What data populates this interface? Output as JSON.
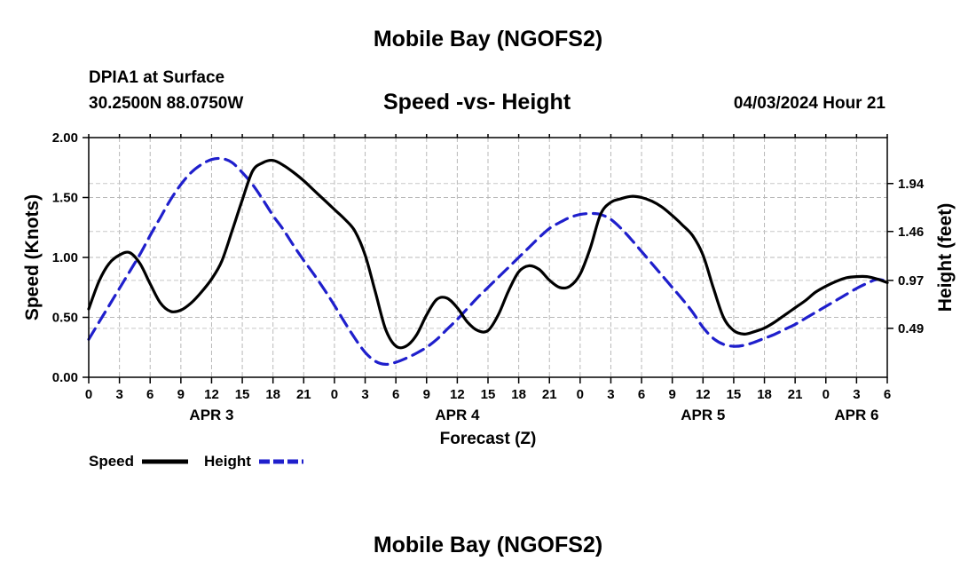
{
  "header": {
    "title": "Mobile Bay (NGOFS2)",
    "station": "DPIA1 at Surface",
    "coords": "30.2500N  88.0750W",
    "subtitle": "Speed -vs- Height",
    "datetime": "04/03/2024 Hour 21"
  },
  "footer": {
    "title": "Mobile Bay (NGOFS2)"
  },
  "chart_data": {
    "type": "line",
    "xlabel": "Forecast (Z)",
    "ylabel": "Speed (Knots)",
    "y2label": "Height (feet)",
    "xlim": [
      0,
      78
    ],
    "ylim": [
      0,
      2.0
    ],
    "y2lim": [
      0.0,
      2.4
    ],
    "x_ticks": [
      0,
      3,
      6,
      9,
      12,
      15,
      18,
      21,
      24,
      27,
      30,
      33,
      36,
      39,
      42,
      45,
      48,
      51,
      54,
      57,
      60,
      63,
      66,
      69,
      72,
      75,
      78
    ],
    "x_tick_labels": [
      "0",
      "3",
      "6",
      "9",
      "12",
      "15",
      "18",
      "21",
      "0",
      "3",
      "6",
      "9",
      "12",
      "15",
      "18",
      "21",
      "0",
      "3",
      "6",
      "9",
      "12",
      "15",
      "18",
      "21",
      "0",
      "3",
      "6"
    ],
    "y_ticks": [
      0.0,
      0.5,
      1.0,
      1.5,
      2.0
    ],
    "y_tick_labels": [
      "0.00",
      "0.50",
      "1.00",
      "1.50",
      "2.00"
    ],
    "y2_ticks": [
      0.49,
      0.97,
      1.46,
      1.94
    ],
    "y2_tick_labels": [
      "0.49",
      "0.97",
      "1.46",
      "1.94"
    ],
    "date_labels": [
      {
        "x": 12,
        "label": "APR 3"
      },
      {
        "x": 36,
        "label": "APR 4"
      },
      {
        "x": 60,
        "label": "APR 5"
      },
      {
        "x": 75,
        "label": "APR 6"
      }
    ],
    "grid": true,
    "legend": "bottom-left",
    "series": [
      {
        "name": "Speed",
        "color": "#000000",
        "dash": false,
        "axis": "left",
        "x": [
          0,
          1,
          2,
          3,
          4,
          5,
          6,
          7,
          8,
          9,
          10,
          11,
          12,
          13,
          14,
          15,
          16,
          17,
          18,
          19,
          20,
          21,
          22,
          23,
          24,
          25,
          26,
          27,
          28,
          29,
          30,
          31,
          32,
          33,
          34,
          35,
          36,
          37,
          38,
          39,
          40,
          41,
          42,
          43,
          44,
          45,
          46,
          47,
          48,
          49,
          50,
          51,
          52,
          53,
          54,
          55,
          56,
          57,
          58,
          59,
          60,
          61,
          62,
          63,
          64,
          65,
          66,
          67,
          68,
          69,
          70,
          71,
          72,
          73,
          74,
          75,
          76,
          77,
          78
        ],
        "values": [
          0.57,
          0.8,
          0.95,
          1.02,
          1.04,
          0.95,
          0.78,
          0.62,
          0.55,
          0.56,
          0.62,
          0.71,
          0.82,
          0.97,
          1.22,
          1.48,
          1.72,
          1.79,
          1.81,
          1.77,
          1.71,
          1.64,
          1.56,
          1.48,
          1.4,
          1.32,
          1.22,
          1.02,
          0.71,
          0.4,
          0.26,
          0.26,
          0.35,
          0.52,
          0.65,
          0.66,
          0.58,
          0.46,
          0.39,
          0.39,
          0.52,
          0.72,
          0.88,
          0.93,
          0.9,
          0.81,
          0.75,
          0.76,
          0.86,
          1.08,
          1.36,
          1.46,
          1.49,
          1.51,
          1.5,
          1.47,
          1.42,
          1.35,
          1.27,
          1.18,
          1.02,
          0.75,
          0.5,
          0.39,
          0.36,
          0.38,
          0.41,
          0.46,
          0.52,
          0.58,
          0.64,
          0.71,
          0.76,
          0.8,
          0.83,
          0.84,
          0.84,
          0.82,
          0.79
        ]
      },
      {
        "name": "Height",
        "color": "#1f1fcc",
        "dash": true,
        "axis": "right",
        "x": [
          0,
          1,
          2,
          3,
          4,
          5,
          6,
          7,
          8,
          9,
          10,
          11,
          12,
          13,
          14,
          15,
          16,
          17,
          18,
          19,
          20,
          21,
          22,
          23,
          24,
          25,
          26,
          27,
          28,
          29,
          30,
          31,
          32,
          33,
          34,
          35,
          36,
          37,
          38,
          39,
          40,
          41,
          42,
          43,
          44,
          45,
          46,
          47,
          48,
          49,
          50,
          51,
          52,
          53,
          54,
          55,
          56,
          57,
          58,
          59,
          60,
          61,
          62,
          63,
          64,
          65,
          66,
          67,
          68,
          69,
          70,
          71,
          72,
          73,
          74,
          75,
          76,
          77,
          78
        ],
        "values": [
          0.38,
          0.55,
          0.72,
          0.89,
          1.06,
          1.23,
          1.42,
          1.6,
          1.78,
          1.93,
          2.05,
          2.13,
          2.18,
          2.19,
          2.15,
          2.05,
          1.93,
          1.78,
          1.62,
          1.48,
          1.32,
          1.17,
          1.03,
          0.88,
          0.72,
          0.55,
          0.39,
          0.25,
          0.16,
          0.13,
          0.15,
          0.19,
          0.24,
          0.3,
          0.38,
          0.48,
          0.58,
          0.69,
          0.8,
          0.9,
          1.0,
          1.1,
          1.2,
          1.3,
          1.4,
          1.49,
          1.55,
          1.6,
          1.63,
          1.64,
          1.63,
          1.58,
          1.49,
          1.38,
          1.26,
          1.14,
          1.02,
          0.9,
          0.78,
          0.65,
          0.5,
          0.39,
          0.33,
          0.31,
          0.32,
          0.35,
          0.39,
          0.43,
          0.48,
          0.53,
          0.59,
          0.65,
          0.71,
          0.77,
          0.83,
          0.89,
          0.94,
          0.98,
          0.96
        ]
      }
    ]
  }
}
